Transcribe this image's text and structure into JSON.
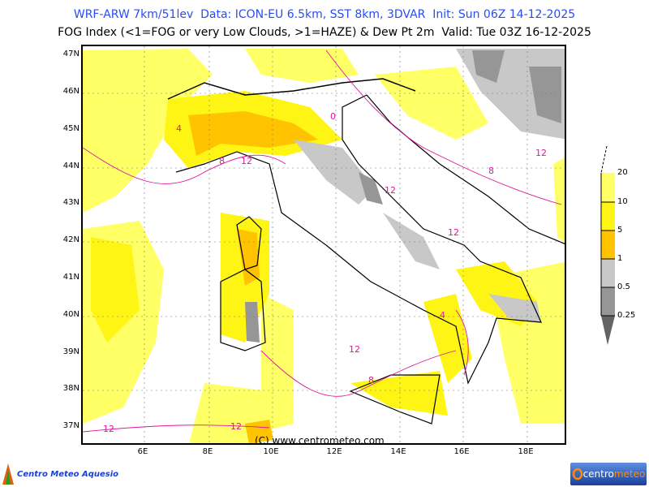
{
  "header": {
    "line1": "WRF-ARW 7km/51lev  Data: ICON-EU 6.5km, SST 8km, 3DVAR  Init: Sun 06Z 14-12-2025",
    "line2": "FOG Index (<1=FOG or very Low Clouds, >1=HAZE) & Dew Pt 2m  Valid: Tue 03Z 16-12-2025"
  },
  "map": {
    "lat_labels": [
      "47N",
      "46N",
      "45N",
      "44N",
      "43N",
      "42N",
      "41N",
      "40N",
      "39N",
      "38N",
      "37N"
    ],
    "lon_labels": [
      "6E",
      "8E",
      "10E",
      "12E",
      "14E",
      "16E",
      "18E"
    ],
    "contour_labels": [
      "12",
      "8",
      "4",
      "0",
      "12",
      "12",
      "12",
      "8",
      "12",
      "4",
      "12",
      "12",
      "8"
    ],
    "watermark": "(C) www.centrometeo.com"
  },
  "colorbar": {
    "labels": [
      "20",
      "10",
      "5",
      "1",
      "0.5",
      "0.25"
    ],
    "colors": [
      "#ffff66",
      "#fff514",
      "#ffc300",
      "#c8c8c8",
      "#969696",
      "#646464"
    ]
  },
  "logos": {
    "left": "Centro Meteo Aquesio",
    "right_a": "centro",
    "right_b": "meteo"
  }
}
